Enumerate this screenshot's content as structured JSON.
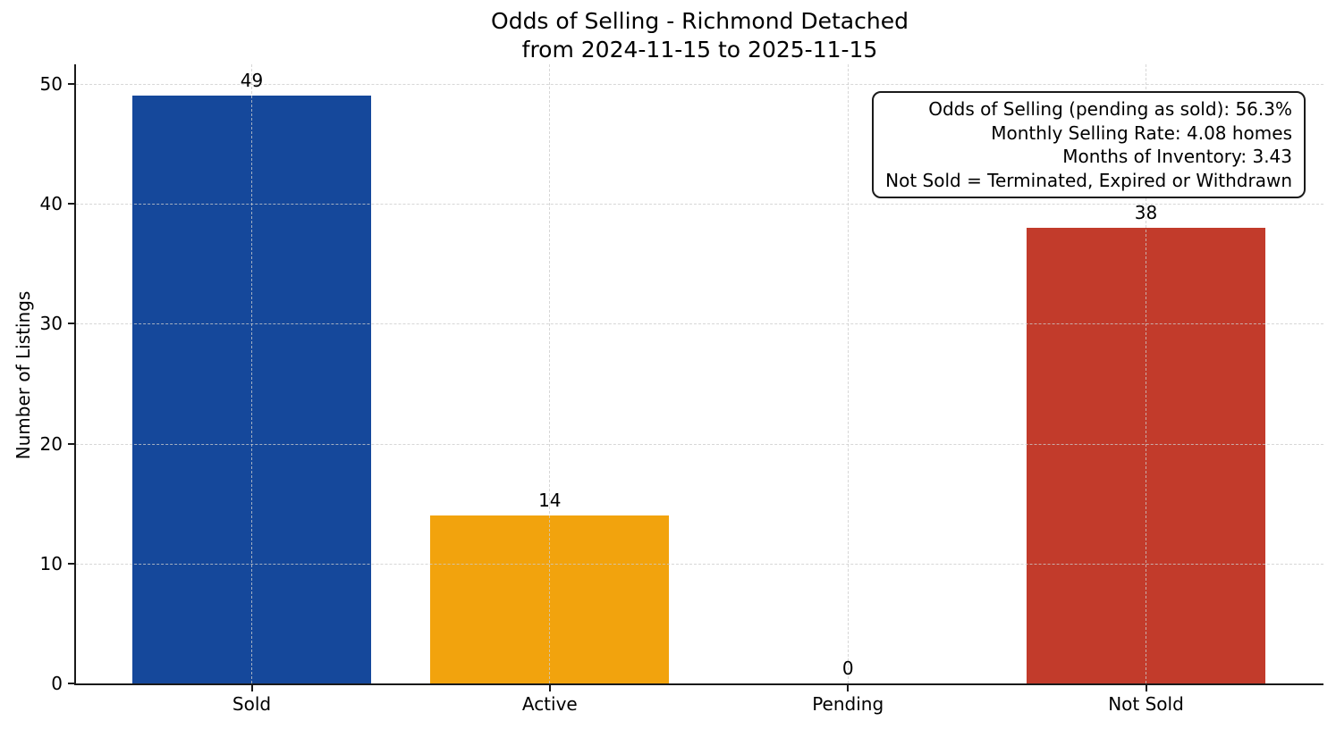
{
  "chart_data": {
    "type": "bar",
    "title": "Odds of Selling - Richmond Detached\nfrom 2024-11-15 to 2025-11-15",
    "categories": [
      "Sold",
      "Active",
      "Pending",
      "Not Sold"
    ],
    "values": [
      49,
      14,
      0,
      38
    ],
    "bar_colors": [
      "#15489B",
      "#F2A30D",
      null,
      "#C23B2B"
    ],
    "xlabel": "",
    "ylabel": "Number of Listings",
    "ylim": [
      0,
      50
    ],
    "yticks": [
      0,
      10,
      20,
      30,
      40,
      50
    ],
    "grid": {
      "style": "dashed",
      "axes": "both",
      "color": "#cccccc",
      "drawn_above_bars": true
    },
    "legend": "none",
    "colors": {
      "sold_bar": "#15489B",
      "active_bar": "#F2A30D",
      "not_sold_bar": "#C23B2B",
      "spine": "#1a1a1a"
    }
  },
  "annotation": {
    "lines": [
      "Odds of Selling (pending as sold): 56.3%",
      "Monthly Selling Rate: 4.08 homes",
      "Months of Inventory: 3.43",
      "Not Sold = Terminated, Expired or Withdrawn"
    ]
  }
}
